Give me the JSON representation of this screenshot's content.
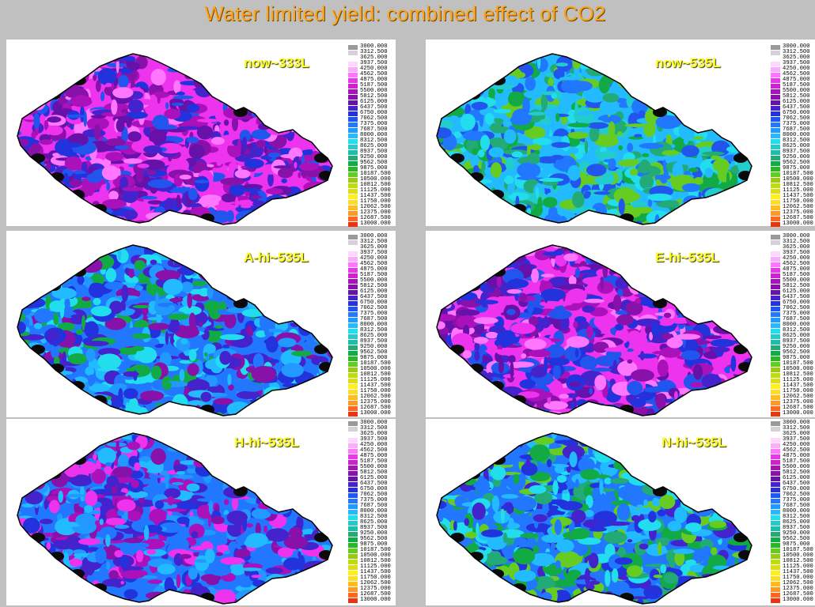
{
  "title": "Water limited yield: combined effect of CO2",
  "legend": {
    "values": [
      "3000.000",
      "3312.500",
      "3625.000",
      "3937.500",
      "4250.000",
      "4562.500",
      "4875.000",
      "5187.500",
      "5500.000",
      "5812.500",
      "6125.000",
      "6437.500",
      "6750.000",
      "7062.500",
      "7375.000",
      "7687.500",
      "8000.000",
      "8312.500",
      "8625.000",
      "8937.500",
      "9250.000",
      "9562.500",
      "9875.000",
      "10187.500",
      "10500.000",
      "10812.500",
      "11125.000",
      "11437.500",
      "11750.000",
      "12062.500",
      "12375.000",
      "12687.500",
      "13000.000"
    ],
    "colors": [
      "#9a9a9a",
      "#d8d0d8",
      "#ffffff",
      "#ffd6ff",
      "#ffaaff",
      "#ff77ff",
      "#ee33ee",
      "#cc22cc",
      "#aa11bb",
      "#8811aa",
      "#6611aa",
      "#4422cc",
      "#2233dd",
      "#2255ee",
      "#2277ff",
      "#2299ff",
      "#22bbff",
      "#22ddee",
      "#22cccc",
      "#22bbaa",
      "#22aa77",
      "#11aa44",
      "#22bb22",
      "#66cc22",
      "#99cc11",
      "#bbdd11",
      "#dddd11",
      "#ffee22",
      "#ffdd22",
      "#ffbb22",
      "#ff9922",
      "#ff6622",
      "#ee3311"
    ]
  },
  "panels": [
    {
      "label": "now~333L",
      "palette": [
        "#ee33ee",
        "#aa11bb",
        "#6611aa",
        "#4422cc",
        "#2233dd",
        "#ff77ff",
        "#8811aa",
        "#2255ee"
      ]
    },
    {
      "label": "now~535L",
      "palette": [
        "#22bbff",
        "#22ddee",
        "#11aa44",
        "#22aa77",
        "#2277ff",
        "#66cc22",
        "#22cccc",
        "#2255ee"
      ]
    },
    {
      "label": "A-hi~535L",
      "palette": [
        "#2277ff",
        "#22bbff",
        "#2233dd",
        "#4422cc",
        "#22ddee",
        "#8811aa",
        "#2299ff",
        "#11aa44"
      ]
    },
    {
      "label": "E-hi~535L",
      "palette": [
        "#ee33ee",
        "#aa11bb",
        "#4422cc",
        "#2233dd",
        "#6611aa",
        "#ff77ff",
        "#2255ee",
        "#8811aa"
      ]
    },
    {
      "label": "H-hi~535L",
      "palette": [
        "#2277ff",
        "#4422cc",
        "#aa11bb",
        "#2233dd",
        "#22bbff",
        "#8811aa",
        "#ee33ee",
        "#2299ff"
      ]
    },
    {
      "label": "N-hi~535L",
      "palette": [
        "#2277ff",
        "#22bbff",
        "#11aa44",
        "#2233dd",
        "#22aa77",
        "#22ddee",
        "#4422cc",
        "#66cc22"
      ]
    }
  ],
  "map": {
    "outline": "#000000",
    "border_fill": "#0a0a0a"
  }
}
